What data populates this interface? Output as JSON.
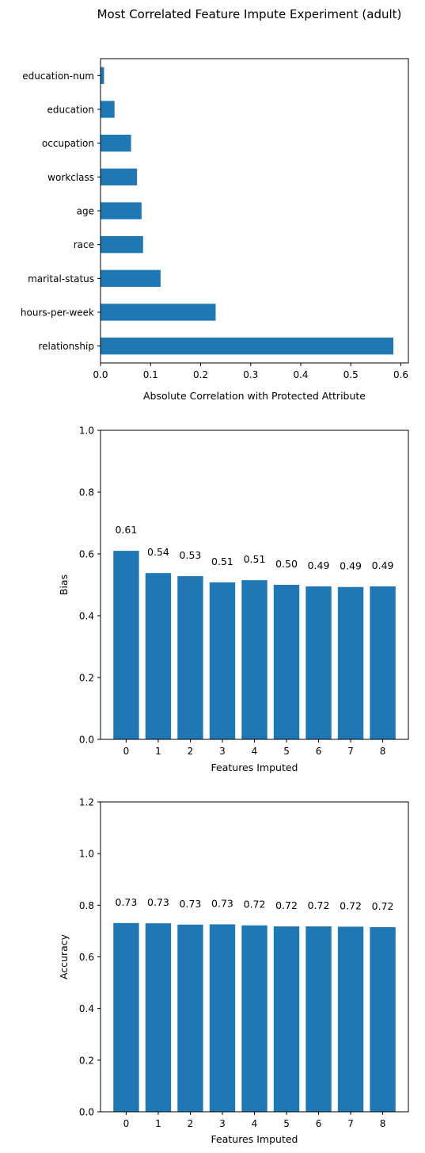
{
  "figure": {
    "title": "Most Correlated Feature Impute Experiment (adult)"
  },
  "colors": {
    "bar": "#1f77b4",
    "axis": "#000000",
    "background": "#ffffff"
  },
  "chart_data": [
    {
      "id": "correlation",
      "type": "bar",
      "orientation": "horizontal",
      "categories": [
        "relationship",
        "hours-per-week",
        "marital-status",
        "race",
        "age",
        "workclass",
        "occupation",
        "education",
        "education-num"
      ],
      "values": [
        0.585,
        0.23,
        0.12,
        0.085,
        0.082,
        0.073,
        0.061,
        0.028,
        0.007
      ],
      "xlabel": "Absolute Correlation with Protected Attribute",
      "ylabel": "",
      "xlim": [
        0,
        0.615
      ],
      "xticks": [
        0.0,
        0.1,
        0.2,
        0.3,
        0.4,
        0.5,
        0.6
      ],
      "xtick_labels": [
        "0.0",
        "0.1",
        "0.2",
        "0.3",
        "0.4",
        "0.5",
        "0.6"
      ],
      "grid": false,
      "legend": "none"
    },
    {
      "id": "bias",
      "type": "bar",
      "categories": [
        "0",
        "1",
        "2",
        "3",
        "4",
        "5",
        "6",
        "7",
        "8"
      ],
      "values": [
        0.61,
        0.538,
        0.528,
        0.508,
        0.515,
        0.5,
        0.495,
        0.493,
        0.495
      ],
      "data_labels": [
        "0.61",
        "0.54",
        "0.53",
        "0.51",
        "0.51",
        "0.50",
        "0.49",
        "0.49",
        "0.49"
      ],
      "xlabel": "Features Imputed",
      "ylabel": "Bias",
      "ylim": [
        0,
        1.0
      ],
      "yticks": [
        0.0,
        0.2,
        0.4,
        0.6,
        0.8,
        1.0
      ],
      "ytick_labels": [
        "0.0",
        "0.2",
        "0.4",
        "0.6",
        "0.8",
        "1.0"
      ],
      "grid": false,
      "legend": "none"
    },
    {
      "id": "accuracy",
      "type": "bar",
      "categories": [
        "0",
        "1",
        "2",
        "3",
        "4",
        "5",
        "6",
        "7",
        "8"
      ],
      "values": [
        0.731,
        0.73,
        0.725,
        0.726,
        0.722,
        0.718,
        0.718,
        0.717,
        0.715
      ],
      "data_labels": [
        "0.73",
        "0.73",
        "0.73",
        "0.73",
        "0.72",
        "0.72",
        "0.72",
        "0.72",
        "0.72"
      ],
      "xlabel": "Features Imputed",
      "ylabel": "Accuracy",
      "ylim": [
        0,
        1.2
      ],
      "yticks": [
        0.0,
        0.2,
        0.4,
        0.6,
        0.8,
        1.0,
        1.2
      ],
      "ytick_labels": [
        "0.0",
        "0.2",
        "0.4",
        "0.6",
        "0.8",
        "1.0",
        "1.2"
      ],
      "grid": false,
      "legend": "none"
    }
  ]
}
